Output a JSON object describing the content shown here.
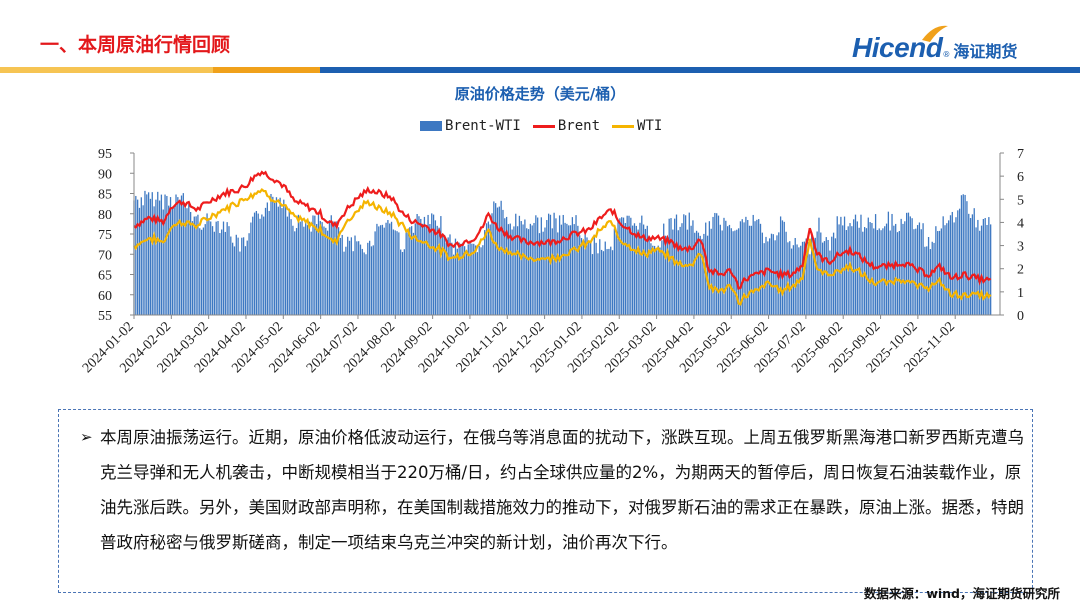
{
  "header": {
    "section_title": "一、本周原油行情回顾",
    "logo_text": "Hicend",
    "logo_registered": "®",
    "logo_cn": "海证期货",
    "colors": {
      "accent_red": "#e3181b",
      "brand_blue": "#1c5fb0",
      "bar_yellow": "#f6c453",
      "bar_orange": "#f0a11b",
      "bar_blue": "#1c5fb0"
    }
  },
  "chart_data": {
    "type": "bar+line",
    "title": "原油价格走势（美元/桶）",
    "legend": [
      "Brent-WTI",
      "Brent",
      "WTI"
    ],
    "series_colors": {
      "Brent-WTI": "#3d78c2",
      "Brent": "#ee1c1c",
      "WTI": "#f5b400"
    },
    "y_left": {
      "min": 55,
      "max": 95,
      "ticks": [
        95,
        90,
        85,
        80,
        75,
        70,
        65,
        60,
        55
      ]
    },
    "y_right": {
      "min": 0,
      "max": 7,
      "ticks": [
        7,
        6,
        5,
        4,
        3,
        2,
        1,
        0
      ]
    },
    "x_ticks": [
      "2024-01-02",
      "2024-02-02",
      "2024-03-02",
      "2024-04-02",
      "2024-05-02",
      "2024-06-02",
      "2024-07-02",
      "2024-08-02",
      "2024-09-02",
      "2024-10-02",
      "2024-11-02",
      "2024-12-02",
      "2025-01-02",
      "2025-02-02",
      "2025-03-02",
      "2025-04-02",
      "2025-05-02",
      "2025-06-02",
      "2025-07-02",
      "2025-08-02",
      "2025-09-02",
      "2025-10-02",
      "2025-11-02"
    ],
    "brent_anchors": [
      [
        0,
        77
      ],
      [
        0.4,
        79
      ],
      [
        0.8,
        78
      ],
      [
        1.0,
        82
      ],
      [
        1.3,
        83
      ],
      [
        1.7,
        81
      ],
      [
        2.0,
        83
      ],
      [
        2.4,
        85
      ],
      [
        2.8,
        86
      ],
      [
        3.0,
        87
      ],
      [
        3.2,
        89
      ],
      [
        3.4,
        90.5
      ],
      [
        3.7,
        89
      ],
      [
        4.0,
        87
      ],
      [
        4.3,
        83
      ],
      [
        4.6,
        82
      ],
      [
        5.0,
        80
      ],
      [
        5.2,
        78
      ],
      [
        5.4,
        77
      ],
      [
        5.6,
        80
      ],
      [
        6.0,
        84
      ],
      [
        6.3,
        86
      ],
      [
        6.6,
        85
      ],
      [
        6.9,
        84
      ],
      [
        7.2,
        80
      ],
      [
        7.5,
        78
      ],
      [
        7.8,
        77
      ],
      [
        8.2,
        75
      ],
      [
        8.5,
        72
      ],
      [
        8.8,
        73
      ],
      [
        9.1,
        74
      ],
      [
        9.3,
        76
      ],
      [
        9.5,
        80
      ],
      [
        9.7,
        77
      ],
      [
        10.0,
        75
      ],
      [
        10.2,
        74
      ],
      [
        10.5,
        73
      ],
      [
        10.8,
        73
      ],
      [
        11.2,
        73
      ],
      [
        11.5,
        74
      ],
      [
        11.8,
        75
      ],
      [
        12.2,
        76
      ],
      [
        12.5,
        79
      ],
      [
        12.8,
        81
      ],
      [
        13.0,
        78
      ],
      [
        13.3,
        76
      ],
      [
        13.6,
        74
      ],
      [
        14.0,
        74
      ],
      [
        14.4,
        73
      ],
      [
        14.7,
        71
      ],
      [
        15.0,
        72
      ],
      [
        15.2,
        74
      ],
      [
        15.4,
        66
      ],
      [
        15.7,
        65
      ],
      [
        16.0,
        66
      ],
      [
        16.2,
        62
      ],
      [
        16.4,
        64
      ],
      [
        16.7,
        65
      ],
      [
        17.0,
        66
      ],
      [
        17.3,
        65
      ],
      [
        17.6,
        65
      ],
      [
        17.9,
        67
      ],
      [
        18.1,
        77
      ],
      [
        18.3,
        70
      ],
      [
        18.6,
        68
      ],
      [
        18.9,
        70
      ],
      [
        19.2,
        71
      ],
      [
        19.5,
        69
      ],
      [
        19.8,
        67
      ],
      [
        20.2,
        67
      ],
      [
        20.6,
        68
      ],
      [
        21.0,
        66
      ],
      [
        21.3,
        65
      ],
      [
        21.6,
        67
      ],
      [
        21.9,
        64
      ],
      [
        22.2,
        65
      ],
      [
        22.6,
        64
      ],
      [
        22.9,
        63.5
      ]
    ],
    "wti_anchors": [
      [
        0,
        72
      ],
      [
        0.4,
        74
      ],
      [
        0.8,
        73
      ],
      [
        1.0,
        77
      ],
      [
        1.3,
        78
      ],
      [
        1.7,
        77
      ],
      [
        2.0,
        79
      ],
      [
        2.4,
        81
      ],
      [
        2.8,
        83
      ],
      [
        3.0,
        84
      ],
      [
        3.2,
        85
      ],
      [
        3.4,
        86
      ],
      [
        3.7,
        84
      ],
      [
        4.0,
        82
      ],
      [
        4.3,
        79
      ],
      [
        4.6,
        78
      ],
      [
        5.0,
        76
      ],
      [
        5.2,
        74
      ],
      [
        5.4,
        73
      ],
      [
        5.6,
        77
      ],
      [
        6.0,
        81
      ],
      [
        6.3,
        83
      ],
      [
        6.6,
        81
      ],
      [
        6.9,
        80
      ],
      [
        7.2,
        77
      ],
      [
        7.5,
        74
      ],
      [
        7.8,
        73
      ],
      [
        8.2,
        71
      ],
      [
        8.5,
        69
      ],
      [
        8.8,
        70
      ],
      [
        9.1,
        71
      ],
      [
        9.3,
        73
      ],
      [
        9.5,
        76
      ],
      [
        9.7,
        72
      ],
      [
        10.0,
        71
      ],
      [
        10.2,
        70
      ],
      [
        10.5,
        69
      ],
      [
        10.8,
        69
      ],
      [
        11.2,
        69
      ],
      [
        11.5,
        70
      ],
      [
        11.8,
        71
      ],
      [
        12.2,
        73
      ],
      [
        12.5,
        76
      ],
      [
        12.8,
        78
      ],
      [
        13.0,
        74
      ],
      [
        13.3,
        72
      ],
      [
        13.6,
        70
      ],
      [
        14.0,
        71
      ],
      [
        14.4,
        69
      ],
      [
        14.7,
        67
      ],
      [
        15.0,
        68
      ],
      [
        15.2,
        71
      ],
      [
        15.4,
        62
      ],
      [
        15.7,
        61
      ],
      [
        16.0,
        62
      ],
      [
        16.2,
        58
      ],
      [
        16.4,
        60
      ],
      [
        16.7,
        61
      ],
      [
        17.0,
        63
      ],
      [
        17.3,
        61
      ],
      [
        17.6,
        62
      ],
      [
        17.9,
        64
      ],
      [
        18.1,
        74
      ],
      [
        18.3,
        66
      ],
      [
        18.6,
        65
      ],
      [
        18.9,
        66
      ],
      [
        19.2,
        67
      ],
      [
        19.5,
        65
      ],
      [
        19.8,
        63
      ],
      [
        20.2,
        63
      ],
      [
        20.6,
        64
      ],
      [
        21.0,
        62
      ],
      [
        21.3,
        62
      ],
      [
        21.6,
        63
      ],
      [
        21.9,
        60
      ],
      [
        22.2,
        60
      ],
      [
        22.6,
        60
      ],
      [
        22.9,
        59.5
      ]
    ]
  },
  "note": {
    "paragraph": "本周原油振荡运行。近期，原油价格低波动运行，在俄乌等消息面的扰动下，涨跌互现。上周五俄罗斯黑海港口新罗西斯克遭乌克兰导弹和无人机袭击，中断规模相当于220万桶/日，约占全球供应量的2%，为期两天的暂停后，周日恢复石油装载作业，原油先涨后跌。另外，美国财政部声明称，在美国制裁措施效力的推动下，对俄罗斯石油的需求正在暴跌，原油上涨。据悉，特朗普政府秘密与俄罗斯磋商，制定一项结束乌克兰冲突的新计划，油价再次下行。"
  },
  "footer": {
    "source": "数据来源：wind，海证期货研究所"
  }
}
